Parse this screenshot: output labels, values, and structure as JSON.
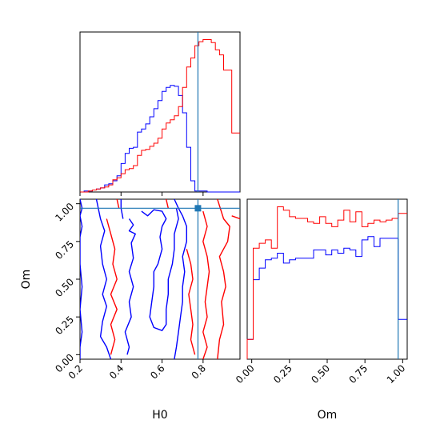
{
  "colors": {
    "series_a": "#ff0000",
    "series_b": "#0000ff",
    "truth": "#1f77b4"
  },
  "chart_data": [
    {
      "panel": "H0-hist",
      "type": "histogram",
      "xlim": [
        0.2,
        0.98
      ],
      "truth": 0.775,
      "bin_start": 0.2,
      "bin_width": 0.02,
      "series": [
        {
          "color": "series_b",
          "values": [
            0,
            1,
            1,
            2,
            3,
            4,
            7,
            8,
            11,
            16,
            28,
            38,
            43,
            44,
            59,
            62,
            67,
            74,
            82,
            90,
            99,
            103,
            105,
            104,
            95,
            78,
            44,
            11,
            1,
            1,
            1,
            0,
            0,
            0,
            0,
            0,
            0,
            0,
            0
          ]
        },
        {
          "color": "series_a",
          "values": [
            0,
            0,
            1,
            2,
            3,
            4,
            5,
            7,
            12,
            14,
            18,
            22,
            23,
            26,
            36,
            41,
            42,
            45,
            48,
            53,
            62,
            68,
            71,
            75,
            84,
            103,
            123,
            132,
            144,
            148,
            150,
            150,
            147,
            140,
            135,
            120,
            120,
            58,
            58
          ]
        }
      ]
    },
    {
      "panel": "Om-hist",
      "type": "histogram",
      "xlim": [
        -0.03,
        1.03
      ],
      "truth": 0.97,
      "bin_start": -0.03,
      "bin_width": 0.04,
      "series": [
        {
          "color": "series_b",
          "values": [
            0.12,
            0.48,
            0.55,
            0.6,
            0.61,
            0.64,
            0.58,
            0.6,
            0.61,
            0.61,
            0.61,
            0.66,
            0.66,
            0.63,
            0.66,
            0.64,
            0.67,
            0.66,
            0.62,
            0.72,
            0.74,
            0.68,
            0.73,
            0.73,
            0.73,
            0.24,
            0.24
          ]
        },
        {
          "color": "series_a",
          "values": [
            0.12,
            0.67,
            0.7,
            0.72,
            0.67,
            0.92,
            0.9,
            0.86,
            0.85,
            0.85,
            0.83,
            0.82,
            0.86,
            0.82,
            0.8,
            0.84,
            0.9,
            0.83,
            0.89,
            0.8,
            0.82,
            0.84,
            0.83,
            0.84,
            0.85,
            0.88,
            0.88
          ]
        }
      ]
    },
    {
      "panel": "H0-Om-contour",
      "type": "contour",
      "xlim": [
        0.2,
        0.98
      ],
      "ylim": [
        -0.03,
        1.03
      ],
      "truth": {
        "x": 0.775,
        "y": 0.97
      },
      "series": [
        {
          "color": "series_b",
          "lines": [
            [
              [
                0.2,
                1.03
              ],
              [
                0.21,
                0.97
              ],
              [
                0.2,
                0.92
              ],
              [
                0.21,
                0.85
              ],
              [
                0.2,
                0.78
              ],
              [
                0.2,
                0.6
              ],
              [
                0.21,
                0.45
              ],
              [
                0.2,
                0.3
              ],
              [
                0.21,
                0.15
              ],
              [
                0.2,
                0.05
              ],
              [
                0.2,
                -0.03
              ]
            ],
            [
              [
                0.28,
                1.03
              ],
              [
                0.3,
                0.9
              ],
              [
                0.32,
                0.82
              ],
              [
                0.3,
                0.72
              ],
              [
                0.31,
                0.6
              ],
              [
                0.33,
                0.5
              ],
              [
                0.31,
                0.4
              ],
              [
                0.33,
                0.32
              ],
              [
                0.31,
                0.22
              ],
              [
                0.3,
                0.12
              ],
              [
                0.33,
                0.05
              ],
              [
                0.35,
                -0.03
              ]
            ],
            [
              [
                0.4,
                1.03
              ],
              [
                0.4,
                0.97
              ],
              [
                0.41,
                0.9
              ]
            ],
            [
              [
                0.5,
                0.95
              ],
              [
                0.53,
                0.92
              ],
              [
                0.56,
                0.96
              ],
              [
                0.6,
                0.95
              ],
              [
                0.62,
                0.9
              ],
              [
                0.6,
                0.85
              ],
              [
                0.59,
                0.78
              ],
              [
                0.6,
                0.7
              ],
              [
                0.58,
                0.6
              ],
              [
                0.56,
                0.55
              ],
              [
                0.56,
                0.45
              ],
              [
                0.55,
                0.35
              ],
              [
                0.54,
                0.25
              ],
              [
                0.56,
                0.18
              ],
              [
                0.6,
                0.16
              ],
              [
                0.62,
                0.2
              ],
              [
                0.62,
                0.3
              ],
              [
                0.63,
                0.4
              ],
              [
                0.63,
                0.5
              ],
              [
                0.65,
                0.6
              ],
              [
                0.66,
                0.7
              ],
              [
                0.66,
                0.8
              ],
              [
                0.68,
                0.9
              ],
              [
                0.67,
                0.97
              ]
            ],
            [
              [
                0.66,
                1.03
              ],
              [
                0.68,
                0.97
              ],
              [
                0.7,
                0.92
              ],
              [
                0.72,
                0.85
              ],
              [
                0.72,
                0.75
              ],
              [
                0.7,
                0.65
              ],
              [
                0.71,
                0.55
              ],
              [
                0.7,
                0.45
              ],
              [
                0.7,
                0.35
              ],
              [
                0.69,
                0.25
              ],
              [
                0.68,
                0.15
              ],
              [
                0.67,
                0.05
              ],
              [
                0.66,
                -0.03
              ]
            ],
            [
              [
                0.44,
                0.9
              ],
              [
                0.46,
                0.86
              ],
              [
                0.44,
                0.82
              ],
              [
                0.47,
                0.8
              ],
              [
                0.45,
                0.74
              ],
              [
                0.46,
                0.64
              ],
              [
                0.44,
                0.55
              ],
              [
                0.46,
                0.45
              ],
              [
                0.44,
                0.35
              ],
              [
                0.45,
                0.25
              ],
              [
                0.42,
                0.15
              ],
              [
                0.44,
                0.05
              ],
              [
                0.43,
                0.0
              ]
            ]
          ]
        },
        {
          "color": "series_a",
          "lines": [
            [
              [
                0.38,
                1.03
              ],
              [
                0.39,
                0.97
              ]
            ],
            [
              [
                0.33,
                0.9
              ],
              [
                0.35,
                0.8
              ],
              [
                0.37,
                0.7
              ],
              [
                0.36,
                0.6
              ],
              [
                0.38,
                0.5
              ],
              [
                0.35,
                0.4
              ],
              [
                0.38,
                0.3
              ],
              [
                0.35,
                0.2
              ],
              [
                0.37,
                0.1
              ],
              [
                0.35,
                0.0
              ]
            ],
            [
              [
                0.62,
                1.03
              ],
              [
                0.63,
                0.97
              ]
            ],
            [
              [
                0.72,
                0.7
              ],
              [
                0.74,
                0.6
              ],
              [
                0.75,
                0.5
              ],
              [
                0.73,
                0.4
              ],
              [
                0.74,
                0.3
              ],
              [
                0.75,
                0.2
              ],
              [
                0.74,
                0.1
              ],
              [
                0.76,
                0.0
              ]
            ],
            [
              [
                0.8,
                0.95
              ],
              [
                0.82,
                0.85
              ],
              [
                0.8,
                0.75
              ],
              [
                0.82,
                0.65
              ],
              [
                0.83,
                0.55
              ],
              [
                0.82,
                0.45
              ],
              [
                0.81,
                0.35
              ],
              [
                0.82,
                0.25
              ],
              [
                0.8,
                0.15
              ],
              [
                0.82,
                0.05
              ],
              [
                0.8,
                -0.03
              ]
            ],
            [
              [
                0.87,
                1.03
              ],
              [
                0.9,
                0.9
              ],
              [
                0.93,
                0.85
              ],
              [
                0.92,
                0.75
              ],
              [
                0.88,
                0.65
              ],
              [
                0.9,
                0.55
              ],
              [
                0.91,
                0.45
              ],
              [
                0.89,
                0.35
              ],
              [
                0.9,
                0.2
              ],
              [
                0.88,
                0.1
              ],
              [
                0.87,
                -0.03
              ]
            ],
            [
              [
                0.94,
                0.92
              ],
              [
                0.98,
                0.9
              ]
            ]
          ]
        }
      ]
    }
  ],
  "axes": {
    "h0_ticks": [
      "0.2",
      "0.4",
      "0.6",
      "0.8"
    ],
    "h0_tick_values": [
      0.2,
      0.4,
      0.6,
      0.8
    ],
    "om_ticks": [
      "0.00",
      "0.25",
      "0.50",
      "0.75",
      "1.00"
    ],
    "om_tick_values": [
      0.0,
      0.25,
      0.5,
      0.75,
      1.0
    ],
    "xlabel_left": "H0",
    "xlabel_right": "Om",
    "ylabel_left": "Om"
  }
}
